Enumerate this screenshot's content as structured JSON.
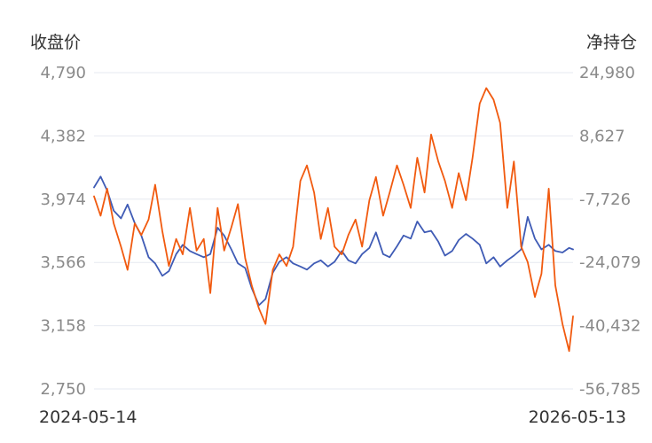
{
  "chart_data": {
    "type": "line",
    "x_range": [
      "2024-05-14",
      "2026-05-13"
    ],
    "x_tick_labels": [
      "2024-05-14",
      "2026-05-13"
    ],
    "left_axis": {
      "label": "收盘价",
      "ylim": [
        2750,
        4790
      ],
      "ticks": [
        "4,790",
        "4,382",
        "3,974",
        "3,566",
        "3,158",
        "2,750"
      ]
    },
    "right_axis": {
      "label": "净持仓",
      "ylim": [
        -56785,
        24980
      ],
      "ticks": [
        "24,980",
        "8,627",
        "-7,726",
        "-24,079",
        "-40,432",
        "-56,785"
      ]
    },
    "grid": true,
    "legend": "none",
    "series": [
      {
        "axis": "left",
        "color": "#3f5bb5",
        "points": [
          [
            "2024-05-14",
            4050
          ],
          [
            "2024-05-24",
            4120
          ],
          [
            "2024-06-03",
            4030
          ],
          [
            "2024-06-13",
            3900
          ],
          [
            "2024-06-24",
            3850
          ],
          [
            "2024-07-04",
            3940
          ],
          [
            "2024-07-15",
            3820
          ],
          [
            "2024-07-25",
            3740
          ],
          [
            "2024-08-05",
            3600
          ],
          [
            "2024-08-15",
            3560
          ],
          [
            "2024-08-26",
            3480
          ],
          [
            "2024-09-05",
            3510
          ],
          [
            "2024-09-16",
            3620
          ],
          [
            "2024-09-26",
            3680
          ],
          [
            "2024-10-07",
            3640
          ],
          [
            "2024-10-17",
            3620
          ],
          [
            "2024-10-28",
            3600
          ],
          [
            "2024-11-07",
            3620
          ],
          [
            "2024-11-18",
            3790
          ],
          [
            "2024-11-28",
            3740
          ],
          [
            "2024-12-09",
            3650
          ],
          [
            "2024-12-19",
            3560
          ],
          [
            "2024-12-30",
            3530
          ],
          [
            "2025-01-09",
            3400
          ],
          [
            "2025-01-20",
            3290
          ],
          [
            "2025-01-30",
            3330
          ],
          [
            "2025-02-10",
            3500
          ],
          [
            "2025-02-20",
            3570
          ],
          [
            "2025-03-03",
            3600
          ],
          [
            "2025-03-13",
            3560
          ],
          [
            "2025-03-24",
            3540
          ],
          [
            "2025-04-03",
            3520
          ],
          [
            "2025-04-14",
            3560
          ],
          [
            "2025-04-24",
            3580
          ],
          [
            "2025-05-05",
            3540
          ],
          [
            "2025-05-15",
            3570
          ],
          [
            "2025-05-26",
            3640
          ],
          [
            "2025-06-05",
            3580
          ],
          [
            "2025-06-16",
            3560
          ],
          [
            "2025-06-26",
            3620
          ],
          [
            "2025-07-07",
            3660
          ],
          [
            "2025-07-17",
            3760
          ],
          [
            "2025-07-28",
            3620
          ],
          [
            "2025-08-07",
            3600
          ],
          [
            "2025-08-18",
            3670
          ],
          [
            "2025-08-28",
            3740
          ],
          [
            "2025-09-08",
            3720
          ],
          [
            "2025-09-18",
            3830
          ],
          [
            "2025-09-29",
            3760
          ],
          [
            "2025-10-09",
            3770
          ],
          [
            "2025-10-20",
            3700
          ],
          [
            "2025-10-30",
            3610
          ],
          [
            "2025-11-10",
            3640
          ],
          [
            "2025-11-20",
            3710
          ],
          [
            "2025-12-01",
            3750
          ],
          [
            "2025-12-11",
            3720
          ],
          [
            "2025-12-22",
            3680
          ],
          [
            "2026-01-01",
            3560
          ],
          [
            "2026-01-12",
            3600
          ],
          [
            "2026-01-22",
            3540
          ],
          [
            "2026-02-02",
            3580
          ],
          [
            "2026-02-12",
            3610
          ],
          [
            "2026-02-23",
            3650
          ],
          [
            "2026-03-05",
            3860
          ],
          [
            "2026-03-16",
            3720
          ],
          [
            "2026-03-26",
            3650
          ],
          [
            "2026-04-06",
            3680
          ],
          [
            "2026-04-16",
            3640
          ],
          [
            "2026-04-27",
            3630
          ],
          [
            "2026-05-07",
            3660
          ],
          [
            "2026-05-13",
            3650
          ]
        ]
      },
      {
        "axis": "right",
        "color": "#f15a0f",
        "points": [
          [
            "2024-05-14",
            -7000
          ],
          [
            "2024-05-24",
            -12000
          ],
          [
            "2024-06-03",
            -5000
          ],
          [
            "2024-06-13",
            -14000
          ],
          [
            "2024-06-24",
            -20000
          ],
          [
            "2024-07-04",
            -26000
          ],
          [
            "2024-07-15",
            -14000
          ],
          [
            "2024-07-25",
            -17000
          ],
          [
            "2024-08-05",
            -13000
          ],
          [
            "2024-08-15",
            -4000
          ],
          [
            "2024-08-26",
            -16000
          ],
          [
            "2024-09-05",
            -25000
          ],
          [
            "2024-09-16",
            -18000
          ],
          [
            "2024-09-26",
            -22000
          ],
          [
            "2024-10-07",
            -10000
          ],
          [
            "2024-10-17",
            -21000
          ],
          [
            "2024-10-28",
            -18000
          ],
          [
            "2024-11-07",
            -32000
          ],
          [
            "2024-11-18",
            -10000
          ],
          [
            "2024-11-28",
            -21000
          ],
          [
            "2024-12-09",
            -15000
          ],
          [
            "2024-12-19",
            -9000
          ],
          [
            "2024-12-30",
            -23000
          ],
          [
            "2025-01-09",
            -30000
          ],
          [
            "2025-01-20",
            -36000
          ],
          [
            "2025-01-30",
            -40000
          ],
          [
            "2025-02-10",
            -26000
          ],
          [
            "2025-02-20",
            -22000
          ],
          [
            "2025-03-03",
            -25000
          ],
          [
            "2025-03-13",
            -20000
          ],
          [
            "2025-03-24",
            -3000
          ],
          [
            "2025-04-03",
            1000
          ],
          [
            "2025-04-14",
            -6000
          ],
          [
            "2025-04-24",
            -18000
          ],
          [
            "2025-05-05",
            -10000
          ],
          [
            "2025-05-15",
            -20000
          ],
          [
            "2025-05-26",
            -22000
          ],
          [
            "2025-06-05",
            -17000
          ],
          [
            "2025-06-16",
            -13000
          ],
          [
            "2025-06-26",
            -20000
          ],
          [
            "2025-07-07",
            -8000
          ],
          [
            "2025-07-17",
            -2000
          ],
          [
            "2025-07-28",
            -12000
          ],
          [
            "2025-08-07",
            -6000
          ],
          [
            "2025-08-18",
            1000
          ],
          [
            "2025-08-28",
            -4000
          ],
          [
            "2025-09-08",
            -10000
          ],
          [
            "2025-09-18",
            3000
          ],
          [
            "2025-09-29",
            -6000
          ],
          [
            "2025-10-09",
            9000
          ],
          [
            "2025-10-20",
            2000
          ],
          [
            "2025-10-30",
            -3000
          ],
          [
            "2025-11-10",
            -10000
          ],
          [
            "2025-11-20",
            -1000
          ],
          [
            "2025-12-01",
            -8000
          ],
          [
            "2025-12-11",
            3000
          ],
          [
            "2025-12-22",
            17000
          ],
          [
            "2026-01-01",
            21000
          ],
          [
            "2026-01-12",
            18000
          ],
          [
            "2026-01-22",
            12000
          ],
          [
            "2026-02-02",
            -10000
          ],
          [
            "2026-02-12",
            2000
          ],
          [
            "2026-02-23",
            -20000
          ],
          [
            "2026-03-05",
            -24000
          ],
          [
            "2026-03-16",
            -33000
          ],
          [
            "2026-03-26",
            -27000
          ],
          [
            "2026-04-06",
            -5000
          ],
          [
            "2026-04-16",
            -30000
          ],
          [
            "2026-04-27",
            -40000
          ],
          [
            "2026-05-07",
            -47000
          ],
          [
            "2026-05-13",
            -38000
          ]
        ]
      }
    ]
  }
}
